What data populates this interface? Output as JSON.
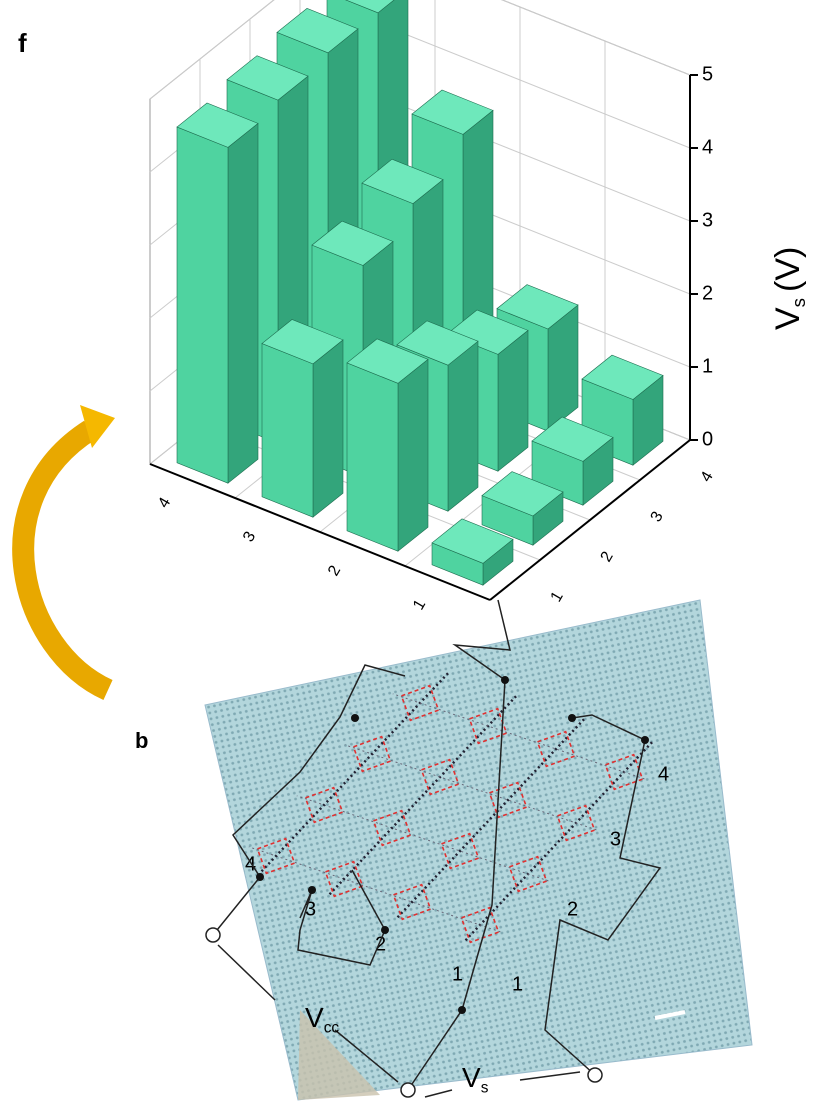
{
  "chart_data": {
    "type": "bar3d",
    "panel_label": "f",
    "z_label": {
      "main": "V",
      "sub": "s",
      "unit": "(V)"
    },
    "row_categories": [
      "1",
      "2",
      "3",
      "4"
    ],
    "col_categories": [
      "1",
      "2",
      "3",
      "4"
    ],
    "values": [
      [
        0.3,
        0.4,
        0.6,
        0.9
      ],
      [
        2.3,
        2.0,
        1.6,
        1.4
      ],
      [
        2.1,
        2.9,
        3.2,
        3.6
      ],
      [
        4.6,
        4.7,
        4.8,
        4.8
      ]
    ],
    "zlim": [
      0,
      5
    ],
    "zticks": [
      0,
      1,
      2,
      3,
      4,
      5
    ],
    "grid": true,
    "color": "#4fd3a0"
  },
  "diagram": {
    "panel_label": "b",
    "left_labels": [
      "1",
      "2",
      "3",
      "4"
    ],
    "right_labels": [
      "1",
      "2",
      "3",
      "4"
    ],
    "vcc": {
      "main": "V",
      "sub": "cc"
    },
    "vs": {
      "main": "V",
      "sub": "s"
    }
  }
}
